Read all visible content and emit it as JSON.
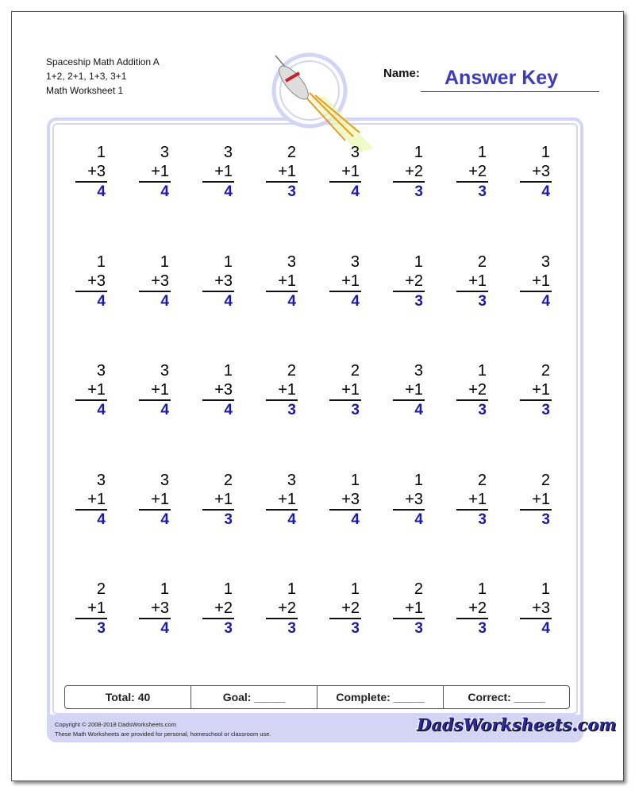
{
  "header": {
    "lines": [
      "Spaceship Math Addition A",
      "1+2, 2+1, 1+3, 3+1",
      "Math Worksheet 1"
    ],
    "name_label": "Name:",
    "name_value": "Answer Key"
  },
  "problems": [
    [
      [
        1,
        3,
        4
      ],
      [
        3,
        1,
        4
      ],
      [
        3,
        1,
        4
      ],
      [
        2,
        1,
        3
      ],
      [
        3,
        1,
        4
      ],
      [
        1,
        2,
        3
      ],
      [
        1,
        2,
        3
      ],
      [
        1,
        3,
        4
      ]
    ],
    [
      [
        1,
        3,
        4
      ],
      [
        1,
        3,
        4
      ],
      [
        1,
        3,
        4
      ],
      [
        3,
        1,
        4
      ],
      [
        3,
        1,
        4
      ],
      [
        1,
        2,
        3
      ],
      [
        2,
        1,
        3
      ],
      [
        3,
        1,
        4
      ]
    ],
    [
      [
        3,
        1,
        4
      ],
      [
        3,
        1,
        4
      ],
      [
        1,
        3,
        4
      ],
      [
        2,
        1,
        3
      ],
      [
        2,
        1,
        3
      ],
      [
        3,
        1,
        4
      ],
      [
        1,
        2,
        3
      ],
      [
        2,
        1,
        3
      ]
    ],
    [
      [
        3,
        1,
        4
      ],
      [
        3,
        1,
        4
      ],
      [
        2,
        1,
        3
      ],
      [
        3,
        1,
        4
      ],
      [
        1,
        3,
        4
      ],
      [
        1,
        3,
        4
      ],
      [
        2,
        1,
        3
      ],
      [
        2,
        1,
        3
      ]
    ],
    [
      [
        2,
        1,
        3
      ],
      [
        1,
        3,
        4
      ],
      [
        1,
        2,
        3
      ],
      [
        1,
        2,
        3
      ],
      [
        1,
        2,
        3
      ],
      [
        2,
        1,
        3
      ],
      [
        1,
        2,
        3
      ],
      [
        1,
        3,
        4
      ]
    ]
  ],
  "score": {
    "total": "Total: 40",
    "goal": "Goal: _____",
    "complete": "Complete: _____",
    "correct": "Correct: _____"
  },
  "footer": {
    "copyright": "Copyright © 2008-2018 DadsWorksheets.com",
    "note": "These Math Worksheets are provided for personal, homeschool or classroom use.",
    "logo": "DadsWorksheets.com"
  },
  "colors": {
    "answer": "#1a1aa8",
    "frame": "#d4d4f4",
    "key": "#3b3bbd"
  }
}
